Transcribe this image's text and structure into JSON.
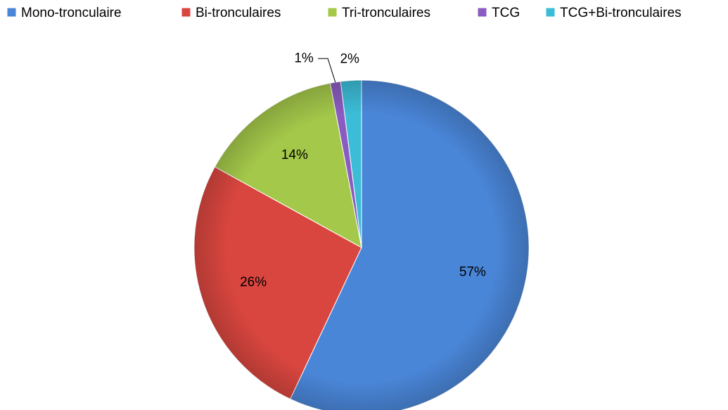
{
  "chart_data": {
    "type": "pie",
    "categories": [
      "Mono-tronculaire",
      "Bi-tronculaires",
      "Tri-tronculaires",
      "TCG",
      "TCG+Bi-tronculaires"
    ],
    "values": [
      57,
      26,
      14,
      1,
      2
    ],
    "value_labels": [
      "57%",
      "26%",
      "14%",
      "1%",
      "2%"
    ],
    "colors": [
      "#4a86d8",
      "#d9463f",
      "#a4c84a",
      "#8a5cc0",
      "#3cbcd6"
    ],
    "legend": "top"
  }
}
